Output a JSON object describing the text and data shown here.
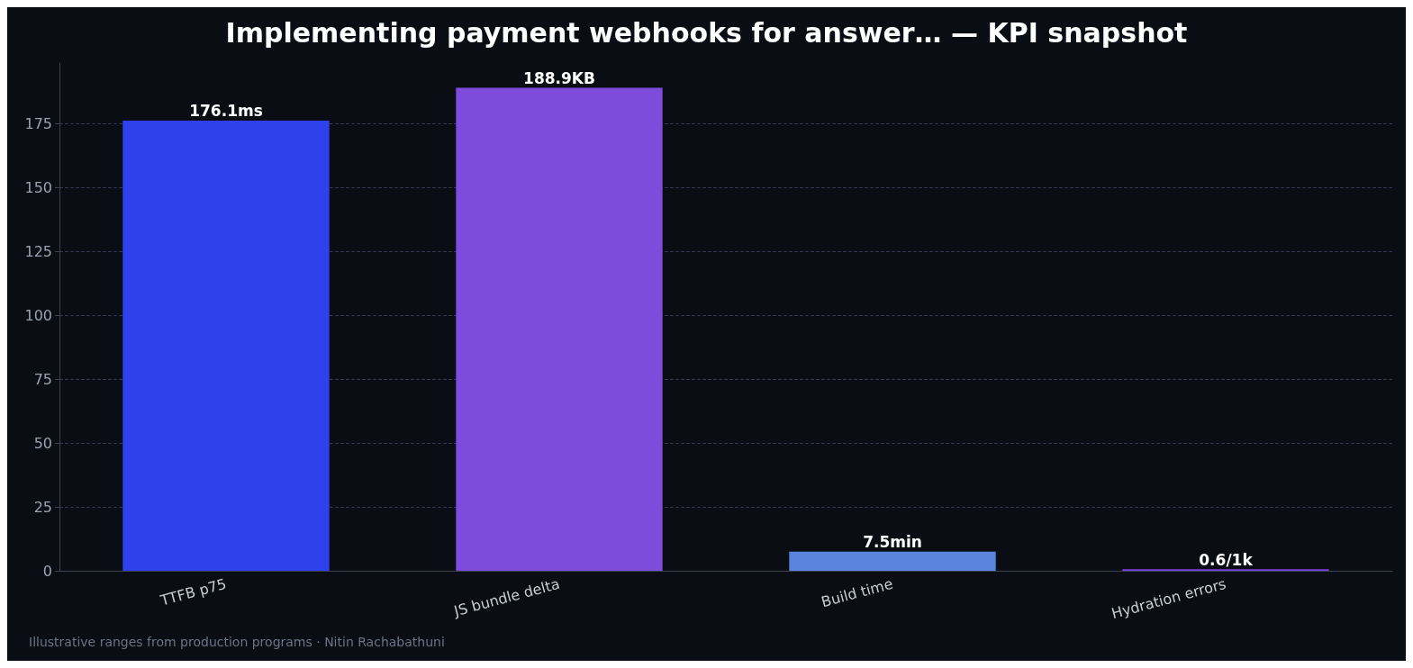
{
  "chart_data": {
    "type": "bar",
    "title": "Implementing payment webhooks for answer… — KPI snapshot",
    "categories": [
      "TTFB p75",
      "JS bundle delta",
      "Build time",
      "Hydration errors"
    ],
    "values": [
      176.1,
      188.9,
      7.5,
      0.6
    ],
    "value_labels": [
      "176.1ms",
      "188.9KB",
      "7.5min",
      "0.6/1k"
    ],
    "colors": [
      "#2f41ea",
      "#7e4cdc",
      "#5b84de",
      "#7b3fe4"
    ],
    "ylim": [
      0,
      198.6
    ],
    "yticks": [
      0,
      25,
      50,
      75,
      100,
      125,
      150,
      175
    ],
    "grid": "y",
    "annotations": [
      "Illustrative ranges from production programs · Nitin Rachabathuni"
    ]
  }
}
